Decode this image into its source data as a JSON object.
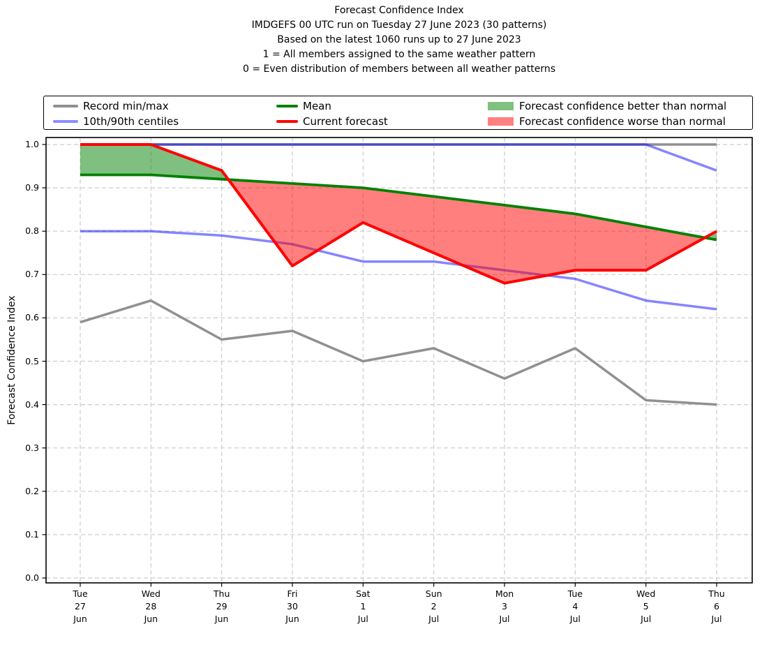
{
  "title_lines": [
    "Forecast Confidence Index",
    "IMDGEFS 00 UTC run on Tuesday 27 June 2023 (30 patterns)",
    "Based on the latest 1060 runs up to 27 June 2023",
    "1 = All members assigned to the same weather pattern",
    "0 = Even distribution of members between all weather patterns"
  ],
  "legend": {
    "record_minmax": {
      "label": "Record min/max",
      "color": "#909090"
    },
    "centiles": {
      "label": "10th/90th centiles",
      "color": "rgba(0,0,255,0.45)"
    },
    "mean": {
      "label": "Mean",
      "color": "#008000"
    },
    "current": {
      "label": "Current forecast",
      "color": "#ff0000"
    },
    "better": {
      "label": "Forecast confidence better than normal",
      "color": "#80c080"
    },
    "worse": {
      "label": "Forecast confidence worse than normal",
      "color": "#ff8080"
    }
  },
  "y_axis": {
    "label": "Forecast Confidence Index",
    "ticks": [
      "1.0",
      "0.9",
      "0.8",
      "0.7",
      "0.6",
      "0.5",
      "0.4",
      "0.3",
      "0.2",
      "0.1",
      "0.0"
    ]
  },
  "x_axis": {
    "ticks": [
      {
        "day": "Tue",
        "date": "27",
        "month": "Jun"
      },
      {
        "day": "Wed",
        "date": "28",
        "month": "Jun"
      },
      {
        "day": "Thu",
        "date": "29",
        "month": "Jun"
      },
      {
        "day": "Fri",
        "date": "30",
        "month": "Jun"
      },
      {
        "day": "Sat",
        "date": "1",
        "month": "Jul"
      },
      {
        "day": "Sun",
        "date": "2",
        "month": "Jul"
      },
      {
        "day": "Mon",
        "date": "3",
        "month": "Jul"
      },
      {
        "day": "Tue",
        "date": "4",
        "month": "Jul"
      },
      {
        "day": "Wed",
        "date": "5",
        "month": "Jul"
      },
      {
        "day": "Thu",
        "date": "6",
        "month": "Jul"
      }
    ]
  },
  "chart_data": {
    "type": "line",
    "title": "Forecast Confidence Index",
    "ylabel": "Forecast Confidence Index",
    "ylim": [
      0.0,
      1.0
    ],
    "ytick_interval": 0.1,
    "grid": true,
    "legend_position": "top",
    "categories": [
      "Tue 27 Jun",
      "Wed 28 Jun",
      "Thu 29 Jun",
      "Fri 30 Jun",
      "Sat 1 Jul",
      "Sun 2 Jul",
      "Mon 3 Jul",
      "Tue 4 Jul",
      "Wed 5 Jul",
      "Thu 6 Jul"
    ],
    "series": [
      {
        "name": "Record max",
        "color": "#909090",
        "opacity": 1,
        "width": 3.5,
        "values": [
          1.0,
          1.0,
          1.0,
          1.0,
          1.0,
          1.0,
          1.0,
          1.0,
          1.0,
          1.0
        ]
      },
      {
        "name": "Record min",
        "color": "#909090",
        "opacity": 1,
        "width": 3.5,
        "values": [
          0.59,
          0.64,
          0.55,
          0.57,
          0.5,
          0.53,
          0.46,
          0.53,
          0.41,
          0.4
        ]
      },
      {
        "name": "90th centile",
        "color": "#0000ff",
        "opacity": 0.48,
        "width": 3.5,
        "values": [
          1.0,
          1.0,
          1.0,
          1.0,
          1.0,
          1.0,
          1.0,
          1.0,
          1.0,
          0.94
        ]
      },
      {
        "name": "10th centile",
        "color": "#0000ff",
        "opacity": 0.48,
        "width": 3.5,
        "values": [
          0.8,
          0.8,
          0.79,
          0.77,
          0.73,
          0.73,
          0.71,
          0.69,
          0.64,
          0.62
        ]
      },
      {
        "name": "Mean",
        "color": "#008000",
        "opacity": 1,
        "width": 3.8,
        "values": [
          0.93,
          0.93,
          0.92,
          0.91,
          0.9,
          0.88,
          0.86,
          0.84,
          0.81,
          0.78
        ]
      },
      {
        "name": "Current forecast",
        "color": "#ff0000",
        "opacity": 1,
        "width": 4,
        "values": [
          1.0,
          1.0,
          0.94,
          0.72,
          0.82,
          0.75,
          0.68,
          0.71,
          0.71,
          0.8
        ]
      }
    ],
    "fill_between": {
      "upper": "Current forecast",
      "lower": "Mean",
      "above_color": "#008000",
      "below_color": "#ff0000",
      "opacity": 0.5,
      "above_label": "Forecast confidence better than normal",
      "below_label": "Forecast confidence worse than normal"
    }
  }
}
